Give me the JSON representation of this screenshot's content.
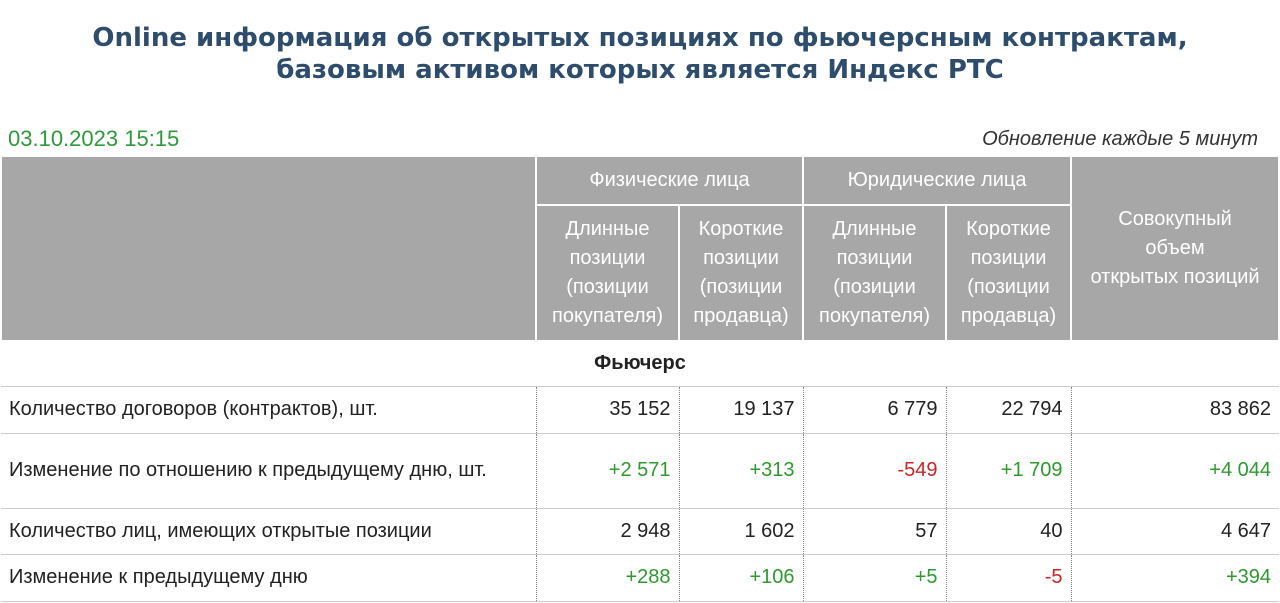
{
  "header": {
    "title_lines": [
      "Online информация об открытых позициях по фьючерсным контрактам,",
      "базовым активом которых является Индекс РТС"
    ]
  },
  "timestamp": "03.10.2023 15:15",
  "update_note": "Обновление каждые 5 минут",
  "table": {
    "groups": [
      "Физические лица",
      "Юридические лица"
    ],
    "columns": [
      [
        "Длинные",
        "позиции",
        "(позиции",
        "покупателя)"
      ],
      [
        "Короткие",
        "позиции",
        "(позиции",
        "продавца)"
      ],
      [
        "Длинные",
        "позиции",
        "(позиции",
        "покупателя)"
      ],
      [
        "Короткие",
        "позиции",
        "(позиции",
        "продавца)"
      ]
    ],
    "total_column": [
      "Совокупный",
      "объем",
      "открытых позиций"
    ],
    "section": "Фьючерс",
    "rows": [
      {
        "label": "Количество договоров (контрактов), шт.",
        "values": [
          "35 152",
          "19 137",
          "6 779",
          "22 794",
          "83 862"
        ]
      },
      {
        "label": "Изменение по отношению к предыдущему дню, шт.",
        "values": [
          "+2 571",
          "+313",
          "-549",
          "+1 709",
          "+4 044"
        ]
      },
      {
        "label": "Количество лиц, имеющих открытые позиции",
        "values": [
          "2 948",
          "1 602",
          "57",
          "40",
          "4 647"
        ]
      },
      {
        "label": "Изменение к предыдущему дню",
        "values": [
          "+288",
          "+106",
          "+5",
          "-5",
          "+394"
        ]
      }
    ]
  }
}
